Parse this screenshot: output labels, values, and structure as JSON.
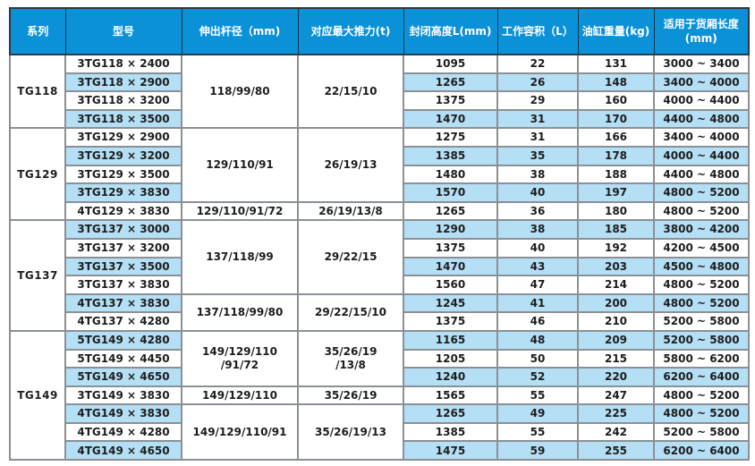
{
  "colors": {
    "header_bg": "#0a91d8",
    "header_text": "#ffffff",
    "row_bg": "#ffffff",
    "row_alt_bg": "#b5dff5",
    "grid_line": "#8a9095",
    "outer_border": "#2e3a44",
    "data_text": "#1d1d1d"
  },
  "table": {
    "headers": [
      "系列",
      "型号",
      "伸出杆径（mm)",
      "对应最大推力(t)",
      "封闭高度L(mm)",
      "工作容积（L）",
      "油缸重量(kg)",
      "适用于货厢长度 (mm)"
    ],
    "groups": [
      {
        "series": "TG118",
        "rod_cells": [
          {
            "span": 4,
            "text": "118/99/80"
          }
        ],
        "thrust_cells": [
          {
            "span": 4,
            "text": "22/15/10"
          }
        ],
        "rows": [
          {
            "model": "3TG118 × 2400",
            "closed_height": "1095",
            "working_volume": "22",
            "cylinder_weight": "131",
            "box_length": "3000 ~ 3400"
          },
          {
            "model": "3TG118 × 2900",
            "closed_height": "1265",
            "working_volume": "26",
            "cylinder_weight": "148",
            "box_length": "3400 ~ 4000"
          },
          {
            "model": "3TG118 × 3200",
            "closed_height": "1375",
            "working_volume": "29",
            "cylinder_weight": "160",
            "box_length": "4000 ~ 4400"
          },
          {
            "model": "3TG118 × 3500",
            "closed_height": "1470",
            "working_volume": "31",
            "cylinder_weight": "170",
            "box_length": "4400 ~ 4800"
          }
        ]
      },
      {
        "series": "TG129",
        "rod_cells": [
          {
            "span": 4,
            "text": "129/110/91"
          },
          {
            "span": 1,
            "text": "129/110/91/72"
          }
        ],
        "thrust_cells": [
          {
            "span": 4,
            "text": "26/19/13"
          },
          {
            "span": 1,
            "text": "26/19/13/8"
          }
        ],
        "rows": [
          {
            "model": "3TG129 × 2900",
            "closed_height": "1275",
            "working_volume": "31",
            "cylinder_weight": "166",
            "box_length": "3400 ~ 4000"
          },
          {
            "model": "3TG129 × 3200",
            "closed_height": "1385",
            "working_volume": "35",
            "cylinder_weight": "178",
            "box_length": "4000 ~ 4400"
          },
          {
            "model": "3TG129 × 3500",
            "closed_height": "1480",
            "working_volume": "38",
            "cylinder_weight": "188",
            "box_length": "4400 ~ 4800"
          },
          {
            "model": "3TG129 × 3830",
            "closed_height": "1570",
            "working_volume": "40",
            "cylinder_weight": "197",
            "box_length": "4800 ~ 5200"
          },
          {
            "model": "4TG129 × 3830",
            "closed_height": "1265",
            "working_volume": "36",
            "cylinder_weight": "180",
            "box_length": "4800 ~ 5200"
          }
        ]
      },
      {
        "series": "TG137",
        "rod_cells": [
          {
            "span": 4,
            "text": "137/118/99"
          },
          {
            "span": 2,
            "text": "137/118/99/80"
          }
        ],
        "thrust_cells": [
          {
            "span": 4,
            "text": "29/22/15"
          },
          {
            "span": 2,
            "text": "29/22/15/10"
          }
        ],
        "rows": [
          {
            "model": "3TG137 × 3000",
            "closed_height": "1290",
            "working_volume": "38",
            "cylinder_weight": "185",
            "box_length": "3800 ~ 4200"
          },
          {
            "model": "3TG137 × 3200",
            "closed_height": "1375",
            "working_volume": "40",
            "cylinder_weight": "192",
            "box_length": "4200 ~ 4500"
          },
          {
            "model": "3TG137 × 3500",
            "closed_height": "1470",
            "working_volume": "43",
            "cylinder_weight": "203",
            "box_length": "4500 ~ 4800"
          },
          {
            "model": "3TG137 × 3830",
            "closed_height": "1560",
            "working_volume": "47",
            "cylinder_weight": "214",
            "box_length": "4800 ~ 5200"
          },
          {
            "model": "4TG137 × 3830",
            "closed_height": "1245",
            "working_volume": "41",
            "cylinder_weight": "200",
            "box_length": "4800 ~ 5200"
          },
          {
            "model": "4TG137 × 4280",
            "closed_height": "1375",
            "working_volume": "46",
            "cylinder_weight": "210",
            "box_length": "5200 ~ 5800"
          }
        ]
      },
      {
        "series": "TG149",
        "rod_cells": [
          {
            "span": 3,
            "text": "149/129/110\n/91/72"
          },
          {
            "span": 1,
            "text": "149/129/110"
          },
          {
            "span": 3,
            "text": "149/129/110/91"
          }
        ],
        "thrust_cells": [
          {
            "span": 3,
            "text": "35/26/19\n/13/8"
          },
          {
            "span": 1,
            "text": "35/26/19"
          },
          {
            "span": 3,
            "text": "35/26/19/13"
          }
        ],
        "rows": [
          {
            "model": "5TG149 × 4280",
            "closed_height": "1165",
            "working_volume": "48",
            "cylinder_weight": "209",
            "box_length": "5200 ~ 5800"
          },
          {
            "model": "5TG149 × 4450",
            "closed_height": "1205",
            "working_volume": "50",
            "cylinder_weight": "215",
            "box_length": "5800 ~ 6200"
          },
          {
            "model": "5TG149 × 4650",
            "closed_height": "1240",
            "working_volume": "52",
            "cylinder_weight": "220",
            "box_length": "6200 ~ 6400"
          },
          {
            "model": "3TG149 × 3830",
            "closed_height": "1565",
            "working_volume": "55",
            "cylinder_weight": "247",
            "box_length": "4800 ~ 5200"
          },
          {
            "model": "4TG149 × 3830",
            "closed_height": "1265",
            "working_volume": "49",
            "cylinder_weight": "225",
            "box_length": "4800 ~ 5200"
          },
          {
            "model": "4TG149 × 4280",
            "closed_height": "1385",
            "working_volume": "55",
            "cylinder_weight": "242",
            "box_length": "5200 ~ 5800"
          },
          {
            "model": "4TG149 × 4650",
            "closed_height": "1475",
            "working_volume": "59",
            "cylinder_weight": "255",
            "box_length": "6200 ~ 6400"
          }
        ]
      }
    ]
  }
}
